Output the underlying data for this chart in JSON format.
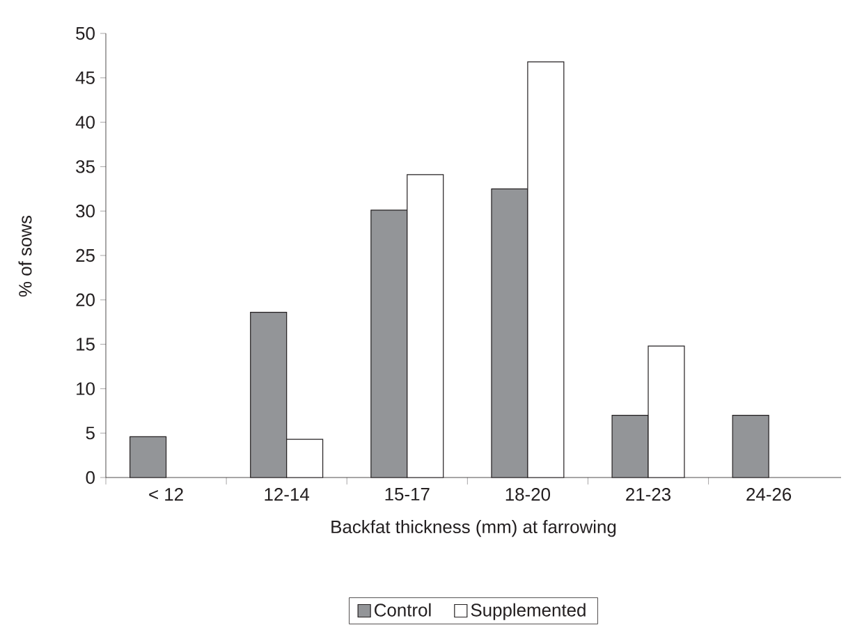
{
  "chart_data": {
    "type": "bar",
    "xlabel": "Backfat thickness (mm) at farrowing",
    "ylabel": "% of sows",
    "categories": [
      "< 12",
      "12-14",
      "15-17",
      "18-20",
      "21-23",
      "24-26"
    ],
    "series": [
      {
        "name": "Control",
        "color": "#939598",
        "values": [
          4.6,
          18.6,
          30.1,
          32.5,
          7.0,
          7.0
        ]
      },
      {
        "name": "Supplemented",
        "color": "#ffffff",
        "values": [
          null,
          4.3,
          34.1,
          46.8,
          14.8,
          null
        ]
      }
    ],
    "ylim": [
      0,
      50
    ],
    "yticks": [
      0,
      5,
      10,
      15,
      20,
      25,
      30,
      35,
      40,
      45,
      50
    ],
    "grid": false,
    "legend": "bottom"
  }
}
